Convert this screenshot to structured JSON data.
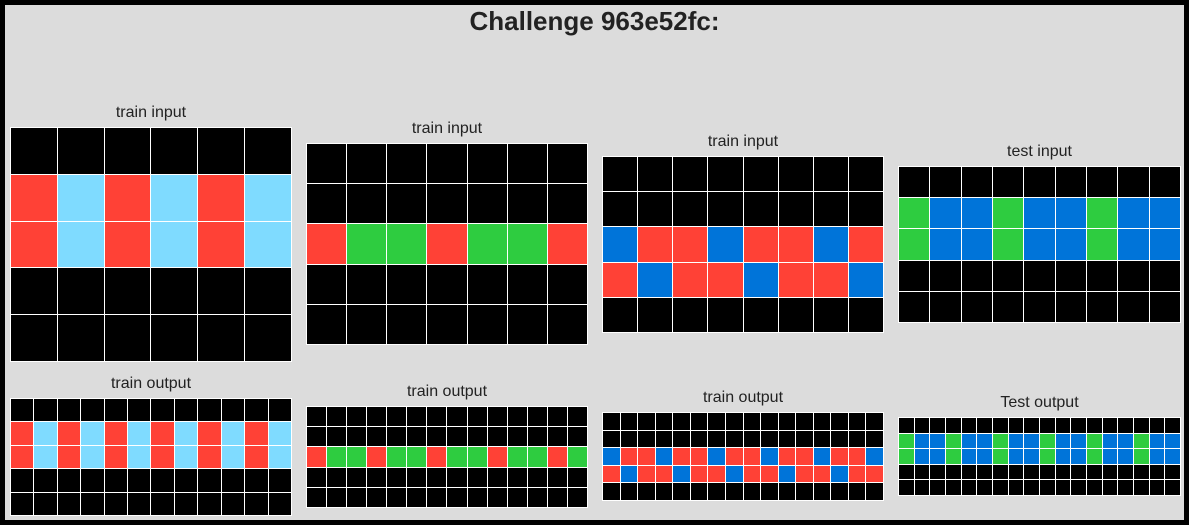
{
  "title": "Challenge 963e52fc:",
  "palette": {
    "0": "#000000",
    "1": "#0074d9",
    "2": "#ff4136",
    "3": "#2ecc40",
    "8": "#7fdbff"
  },
  "panels": [
    {
      "label": "train input",
      "grid": [
        [
          0,
          0,
          0,
          0,
          0,
          0
        ],
        [
          2,
          8,
          2,
          8,
          2,
          8
        ],
        [
          2,
          8,
          2,
          8,
          2,
          8
        ],
        [
          0,
          0,
          0,
          0,
          0,
          0
        ],
        [
          0,
          0,
          0,
          0,
          0,
          0
        ]
      ]
    },
    {
      "label": "train input",
      "grid": [
        [
          0,
          0,
          0,
          0,
          0,
          0,
          0
        ],
        [
          0,
          0,
          0,
          0,
          0,
          0,
          0
        ],
        [
          2,
          3,
          3,
          2,
          3,
          3,
          2
        ],
        [
          0,
          0,
          0,
          0,
          0,
          0,
          0
        ],
        [
          0,
          0,
          0,
          0,
          0,
          0,
          0
        ]
      ]
    },
    {
      "label": "train input",
      "grid": [
        [
          0,
          0,
          0,
          0,
          0,
          0,
          0,
          0
        ],
        [
          0,
          0,
          0,
          0,
          0,
          0,
          0,
          0
        ],
        [
          1,
          2,
          2,
          1,
          2,
          2,
          1,
          2
        ],
        [
          2,
          1,
          2,
          2,
          1,
          2,
          2,
          1
        ],
        [
          0,
          0,
          0,
          0,
          0,
          0,
          0,
          0
        ]
      ]
    },
    {
      "label": "test input",
      "grid": [
        [
          0,
          0,
          0,
          0,
          0,
          0,
          0,
          0,
          0
        ],
        [
          3,
          1,
          1,
          3,
          1,
          1,
          3,
          1,
          1
        ],
        [
          3,
          1,
          1,
          3,
          1,
          1,
          3,
          1,
          1
        ],
        [
          0,
          0,
          0,
          0,
          0,
          0,
          0,
          0,
          0
        ],
        [
          0,
          0,
          0,
          0,
          0,
          0,
          0,
          0,
          0
        ]
      ]
    },
    {
      "label": "train output",
      "grid": [
        [
          0,
          0,
          0,
          0,
          0,
          0,
          0,
          0,
          0,
          0,
          0,
          0
        ],
        [
          2,
          8,
          2,
          8,
          2,
          8,
          2,
          8,
          2,
          8,
          2,
          8
        ],
        [
          2,
          8,
          2,
          8,
          2,
          8,
          2,
          8,
          2,
          8,
          2,
          8
        ],
        [
          0,
          0,
          0,
          0,
          0,
          0,
          0,
          0,
          0,
          0,
          0,
          0
        ],
        [
          0,
          0,
          0,
          0,
          0,
          0,
          0,
          0,
          0,
          0,
          0,
          0
        ]
      ]
    },
    {
      "label": "train output",
      "grid": [
        [
          0,
          0,
          0,
          0,
          0,
          0,
          0,
          0,
          0,
          0,
          0,
          0,
          0,
          0
        ],
        [
          0,
          0,
          0,
          0,
          0,
          0,
          0,
          0,
          0,
          0,
          0,
          0,
          0,
          0
        ],
        [
          2,
          3,
          3,
          2,
          3,
          3,
          2,
          3,
          3,
          2,
          3,
          3,
          2,
          3
        ],
        [
          0,
          0,
          0,
          0,
          0,
          0,
          0,
          0,
          0,
          0,
          0,
          0,
          0,
          0
        ],
        [
          0,
          0,
          0,
          0,
          0,
          0,
          0,
          0,
          0,
          0,
          0,
          0,
          0,
          0
        ]
      ]
    },
    {
      "label": "train output",
      "grid": [
        [
          0,
          0,
          0,
          0,
          0,
          0,
          0,
          0,
          0,
          0,
          0,
          0,
          0,
          0,
          0,
          0
        ],
        [
          0,
          0,
          0,
          0,
          0,
          0,
          0,
          0,
          0,
          0,
          0,
          0,
          0,
          0,
          0,
          0
        ],
        [
          1,
          2,
          2,
          1,
          2,
          2,
          1,
          2,
          2,
          1,
          2,
          2,
          1,
          2,
          2,
          1
        ],
        [
          2,
          1,
          2,
          2,
          1,
          2,
          2,
          1,
          2,
          2,
          1,
          2,
          2,
          1,
          2,
          2
        ],
        [
          0,
          0,
          0,
          0,
          0,
          0,
          0,
          0,
          0,
          0,
          0,
          0,
          0,
          0,
          0,
          0
        ]
      ]
    },
    {
      "label": "Test output",
      "grid": [
        [
          0,
          0,
          0,
          0,
          0,
          0,
          0,
          0,
          0,
          0,
          0,
          0,
          0,
          0,
          0,
          0,
          0,
          0
        ],
        [
          3,
          1,
          1,
          3,
          1,
          1,
          3,
          1,
          1,
          3,
          1,
          1,
          3,
          1,
          1,
          3,
          1,
          1
        ],
        [
          3,
          1,
          1,
          3,
          1,
          1,
          3,
          1,
          1,
          3,
          1,
          1,
          3,
          1,
          1,
          3,
          1,
          1
        ],
        [
          0,
          0,
          0,
          0,
          0,
          0,
          0,
          0,
          0,
          0,
          0,
          0,
          0,
          0,
          0,
          0,
          0,
          0
        ],
        [
          0,
          0,
          0,
          0,
          0,
          0,
          0,
          0,
          0,
          0,
          0,
          0,
          0,
          0,
          0,
          0,
          0,
          0
        ]
      ]
    }
  ]
}
